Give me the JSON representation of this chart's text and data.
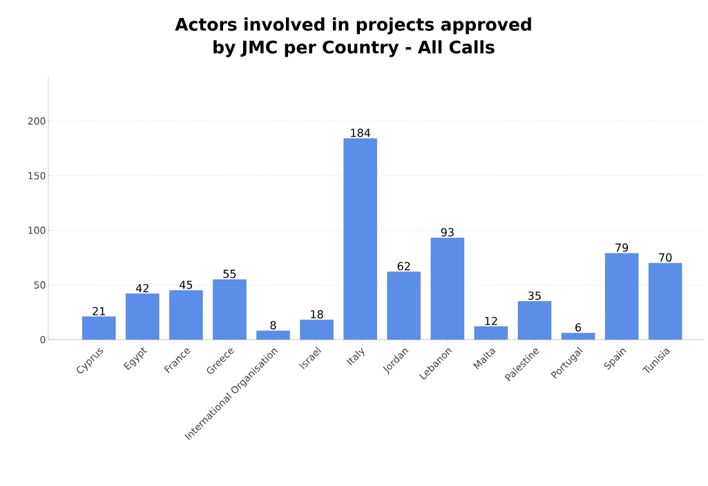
{
  "chart_data": {
    "type": "bar",
    "title": "Actors involved in projects approved by JMC per Country - All Calls",
    "categories": [
      "Cyprus",
      "Egypt",
      "France",
      "Greece",
      "International Organisation",
      "Israel",
      "Italy",
      "Jordan",
      "Lebanon",
      "Malta",
      "Palestine",
      "Portugal",
      "Spain",
      "Tunisia"
    ],
    "values": [
      21,
      42,
      45,
      55,
      8,
      18,
      184,
      62,
      93,
      12,
      35,
      6,
      79,
      70
    ],
    "color": "#5b8ee8",
    "ylim": [
      0,
      240
    ],
    "yticks": [
      0,
      50,
      100,
      150,
      200
    ],
    "grid": "y",
    "data_labels": true
  }
}
